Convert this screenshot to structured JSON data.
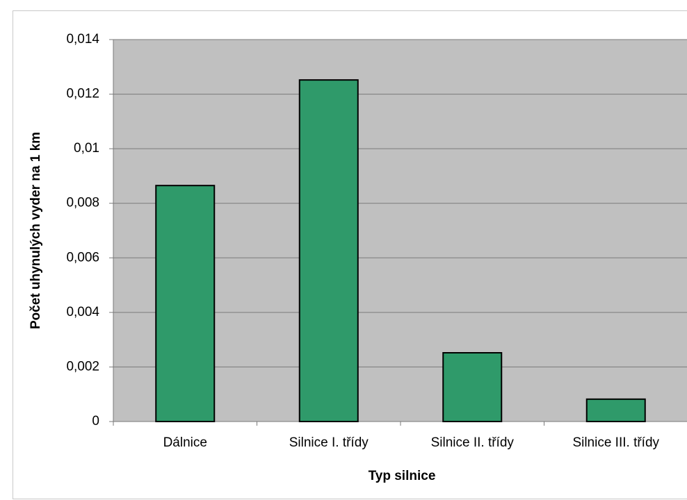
{
  "chart_data": {
    "type": "bar",
    "x_label": "Typ silnice",
    "y_label": "Počet uhynulých vyder na 1 km",
    "categories": [
      "Dálnice",
      "Silnice I. třídy",
      "Silnice II. třídy",
      "Silnice III. třídy"
    ],
    "values": [
      0.00865,
      0.01252,
      0.00252,
      0.00082
    ],
    "color": "#2f9a6a",
    "ylim": [
      0,
      0.014
    ],
    "yticks": [
      0,
      {
        "value": 0.002,
        "label": "0,002"
      },
      {
        "value": 0.004,
        "label": "0,004"
      },
      {
        "value": 0.006,
        "label": "0,006"
      },
      {
        "value": 0.008,
        "label": "0,008"
      },
      {
        "value": 0.01,
        "label": "0,01"
      },
      {
        "value": 0.012,
        "label": "0,012"
      },
      {
        "value": 0.014,
        "label": "0,014"
      }
    ],
    "grid": true
  }
}
